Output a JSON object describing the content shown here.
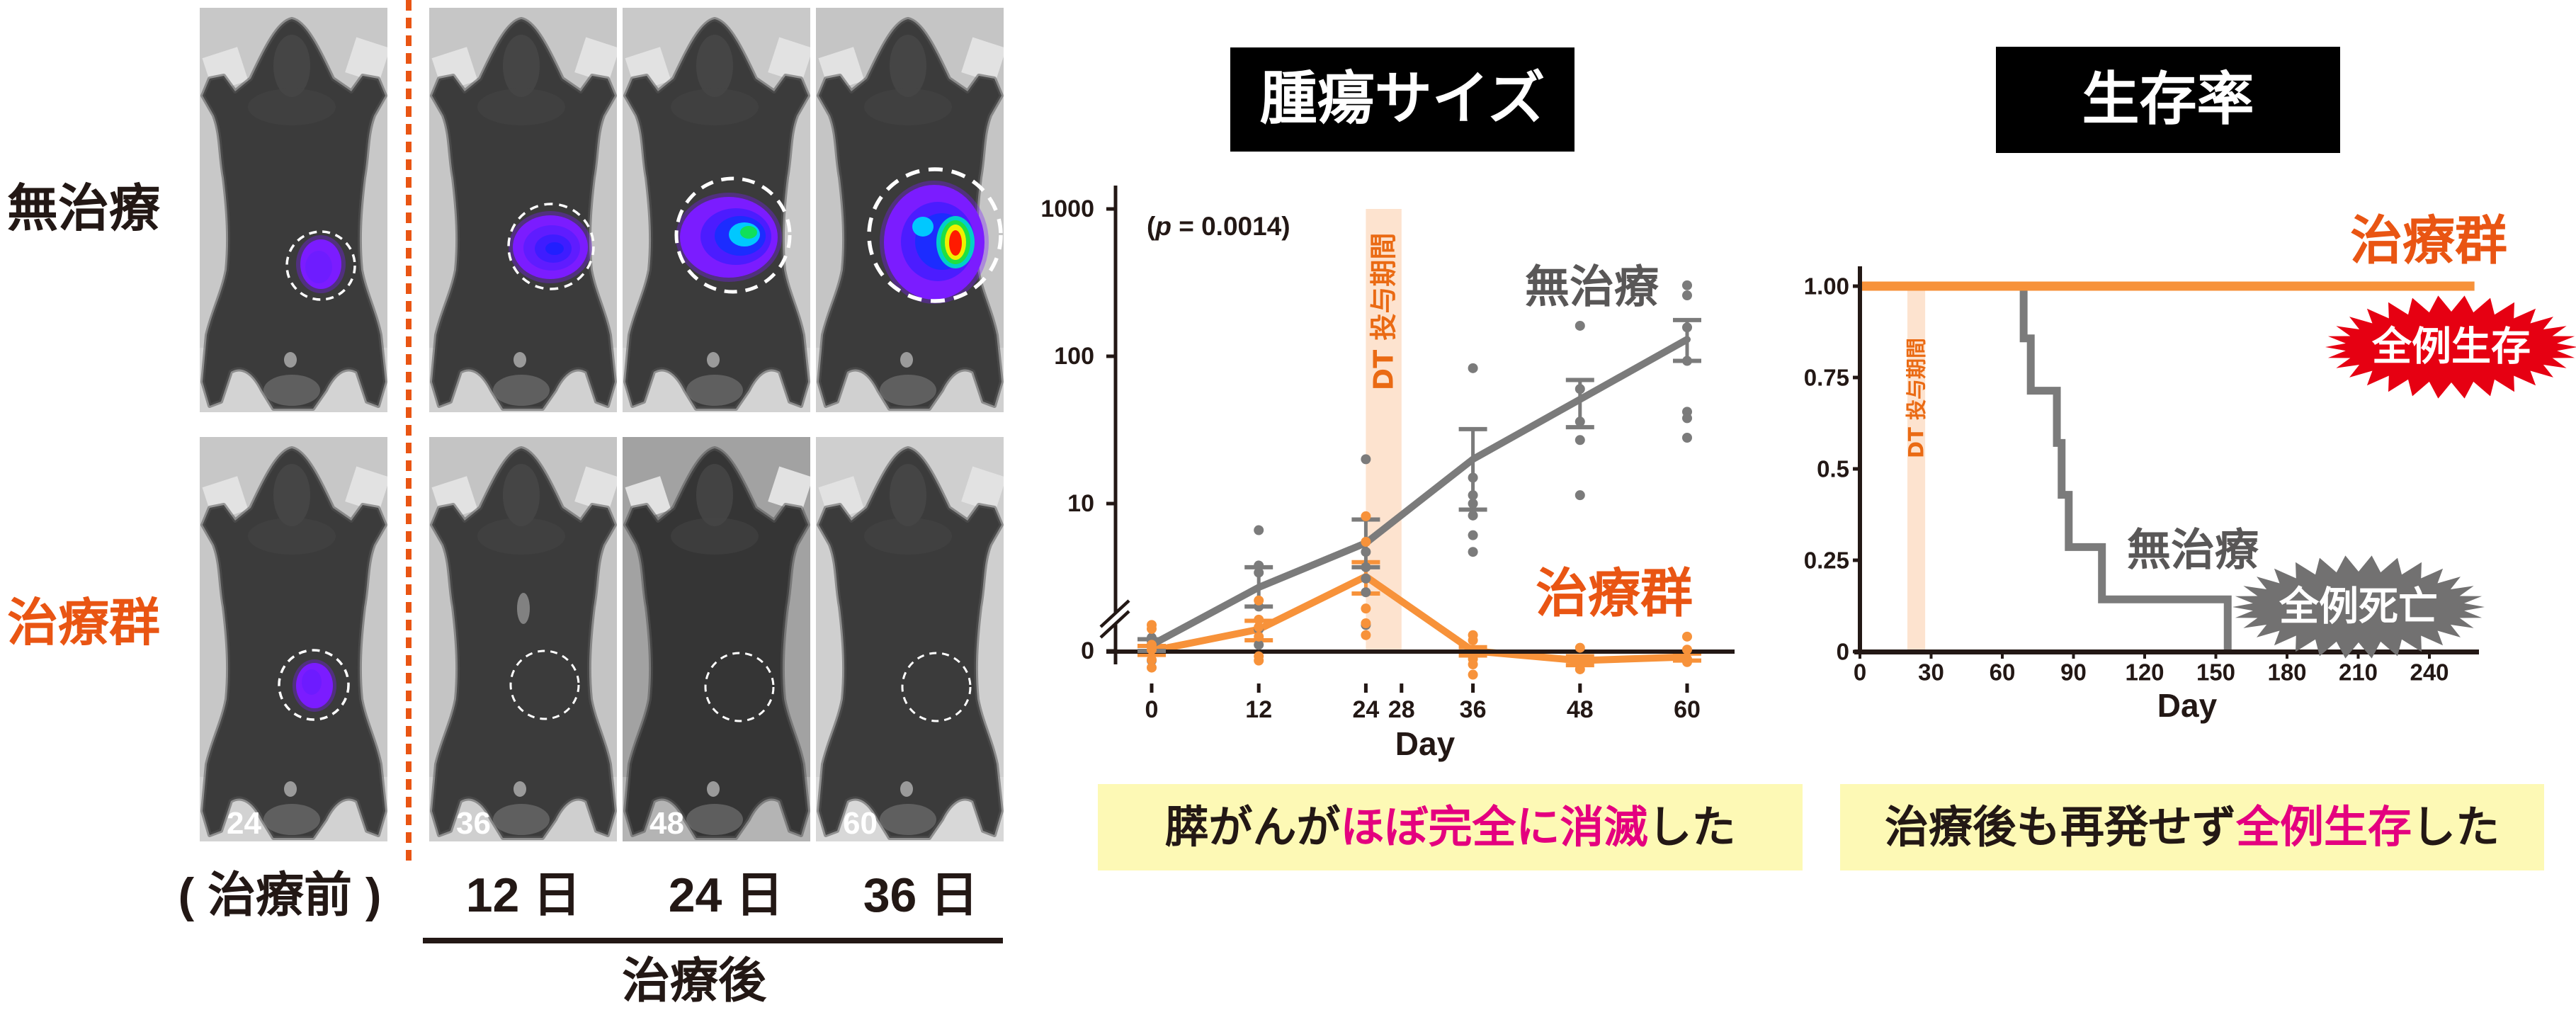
{
  "figure": {
    "colors": {
      "accent_orange": "#e95513",
      "highlight_magenta": "#e4007f",
      "caption_background": "#fdf9b5",
      "title_background": "#000000"
    },
    "imaging": {
      "row_labels": [
        {
          "text": "無治療",
          "color": "#231815"
        },
        {
          "text": "治療群",
          "color": "#e95513"
        }
      ],
      "column_labels": [
        "( 治療前 )",
        "12 日",
        "24 日",
        "36 日"
      ],
      "post_treatment_label": "治療後",
      "panels": [
        {
          "group": "無治療",
          "column": "( 治療前 )",
          "bioluminescence": "small-purple"
        },
        {
          "group": "無治療",
          "column": "12 日",
          "bioluminescence": "medium-blue"
        },
        {
          "group": "無治療",
          "column": "24 日",
          "bioluminescence": "large-green-core"
        },
        {
          "group": "無治療",
          "column": "36 日",
          "bioluminescence": "very-large-red-core"
        },
        {
          "group": "治療群",
          "column": "( 治療前 )",
          "bioluminescence": "small-purple",
          "day_number": "24"
        },
        {
          "group": "治療群",
          "column": "12 日",
          "bioluminescence": "none",
          "day_number": "36"
        },
        {
          "group": "治療群",
          "column": "24 日",
          "bioluminescence": "none",
          "day_number": "48"
        },
        {
          "group": "治療群",
          "column": "36 日",
          "bioluminescence": "none",
          "day_number": "60"
        }
      ]
    }
  },
  "chart_data": [
    {
      "id": "tumor_size",
      "type": "line",
      "title": "腫瘍サイズ",
      "xlabel": "Day",
      "ylabel": "",
      "yscale": "log",
      "axis_break": true,
      "grid": false,
      "legend": "direct labels",
      "xlim": [
        0,
        60
      ],
      "ylim": [
        0,
        1000
      ],
      "x_ticks": [
        0,
        12,
        24,
        28,
        36,
        48,
        60
      ],
      "y_ticks": [
        {
          "label": "1000",
          "position": 1000
        },
        {
          "label": "100",
          "position": 100
        },
        {
          "label": "10",
          "position": 10
        },
        {
          "label": "0",
          "position": 1
        }
      ],
      "annotation": {
        "open": "(",
        "italic": "p",
        "rest": " = 0.0014)"
      },
      "shaded_region": {
        "label": "DT 投与期間",
        "x": [
          24,
          28
        ],
        "color": "#fde3cf",
        "label_color": "#ea6a13"
      },
      "series": [
        {
          "name": "無治療",
          "color": "#7b7b7b",
          "label_color": "#595757",
          "x": [
            0,
            12,
            24,
            36,
            48,
            60
          ],
          "mean": [
            1.1,
            2.7,
            5.4,
            20,
            51,
            130
          ],
          "error_upper": [
            1.2,
            3.7,
            7.8,
            32,
            69,
            176
          ],
          "error_lower": [
            1.0,
            2.0,
            3.7,
            9.1,
            33,
            93
          ],
          "points": [
            [
              1.23,
              1.17,
              1.1,
              0.86
            ],
            [
              6.6,
              3.8,
              3.4,
              2.0,
              1.4,
              1.1
            ],
            [
              20,
              4.7,
              3.7,
              3.1,
              2.5,
              1.5
            ],
            [
              83,
              15,
              11.4,
              10,
              8.3,
              6.1,
              4.7
            ],
            [
              161,
              60,
              36,
              27,
              11.4
            ],
            [
              303,
              259,
              157,
              93,
              42,
              38,
              28
            ]
          ]
        },
        {
          "name": "治療群",
          "color": "#f7923a",
          "label_color": "#e95513",
          "x": [
            0,
            12,
            24,
            36,
            48,
            60
          ],
          "mean": [
            1.0,
            1.4,
            3.2,
            1.0,
            0.86,
            0.91
          ],
          "error_upper": [
            1.08,
            1.6,
            4.0,
            1.06,
            0.92,
            0.96
          ],
          "error_lower": [
            0.94,
            1.18,
            2.45,
            0.93,
            0.8,
            0.86
          ],
          "points": [
            [
              1.5,
              1.41,
              1.1,
              1.02,
              0.87,
              0.77
            ],
            [
              2.2,
              1.63,
              1.45,
              1.25,
              0.92,
              0.86
            ],
            [
              8.2,
              5.5,
              1.94,
              1.54,
              1.28
            ],
            [
              1.28,
              1.18,
              0.88,
              0.81,
              0.69
            ],
            [
              1.05,
              0.81,
              0.75
            ],
            [
              1.25,
              1.02,
              0.88,
              0.84
            ]
          ]
        }
      ],
      "caption": {
        "prefix": "膵がんが",
        "highlight": "ほぼ完全に消滅",
        "suffix": "した"
      }
    },
    {
      "id": "survival",
      "type": "line",
      "subtype": "kaplan-meier step",
      "title": "生存率",
      "xlabel": "Day",
      "ylabel": "",
      "grid": false,
      "legend": "direct labels",
      "xlim": [
        0,
        260
      ],
      "ylim": [
        0,
        1
      ],
      "x_ticks": [
        0,
        30,
        60,
        90,
        120,
        150,
        180,
        210,
        240
      ],
      "y_ticks": [
        {
          "label": "1.00",
          "value": 1
        },
        {
          "label": "0.75",
          "value": 0.75
        },
        {
          "label": "0.5",
          "value": 0.5
        },
        {
          "label": "0.25",
          "value": 0.25
        },
        {
          "label": "0",
          "value": 0
        }
      ],
      "shaded_region": {
        "label": "DT 投与期間",
        "x": [
          20,
          27.5
        ],
        "color": "#fde3cf",
        "label_color": "#ea6a13"
      },
      "series": [
        {
          "name": "治療群",
          "color": "#f7923a",
          "label_color": "#e95513",
          "x": [
            0,
            259
          ],
          "y": [
            1,
            1
          ],
          "badge": {
            "text": "全例生存",
            "color": "#e60012"
          }
        },
        {
          "name": "無治療",
          "color": "#7b7b7b",
          "label_color": "#595757",
          "x": [
            0,
            69,
            72,
            83,
            85,
            88,
            102,
            155
          ],
          "y": [
            1,
            0.857,
            0.714,
            0.571,
            0.429,
            0.286,
            0.143,
            0
          ],
          "badge": {
            "text": "全例死亡",
            "color": "#727171"
          }
        }
      ],
      "caption": {
        "prefix": "治療後も再発せず",
        "highlight": "全例生存",
        "suffix": "した"
      }
    }
  ]
}
